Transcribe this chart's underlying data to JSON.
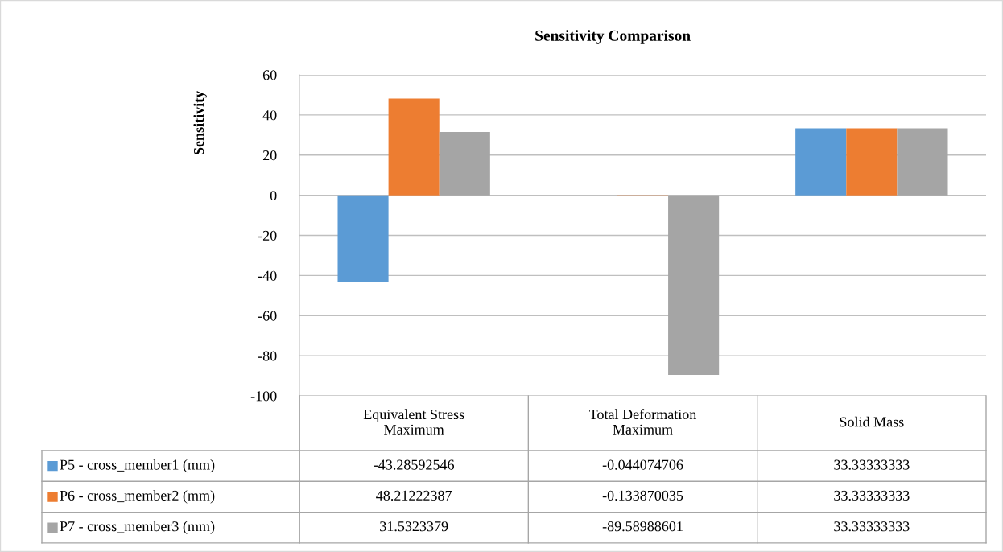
{
  "chart_data": {
    "type": "bar",
    "title": "Sensitivity Comparison",
    "ylabel": "Sensitivity",
    "categories": [
      "Equivalent Stress\nMaximum",
      "Total Deformation\nMaximum",
      "Solid Mass"
    ],
    "series": [
      {
        "name": "P5 - cross_member1 (mm)",
        "color": "#5b9bd5",
        "values": [
          -43.28592546,
          -0.044074706,
          33.33333333
        ]
      },
      {
        "name": "P6 - cross_member2 (mm)",
        "color": "#ed7d31",
        "values": [
          48.21222387,
          -0.133870035,
          33.33333333
        ]
      },
      {
        "name": "P7 - cross_member3 (mm)",
        "color": "#a5a5a5",
        "values": [
          31.5323379,
          -89.58988601,
          33.33333333
        ]
      }
    ],
    "ylim": [
      -100,
      60
    ],
    "yticks": [
      -100,
      -80,
      -60,
      -40,
      -20,
      0,
      20,
      40,
      60
    ],
    "grid": "y",
    "data_labels": true,
    "legend": "bottom left"
  }
}
